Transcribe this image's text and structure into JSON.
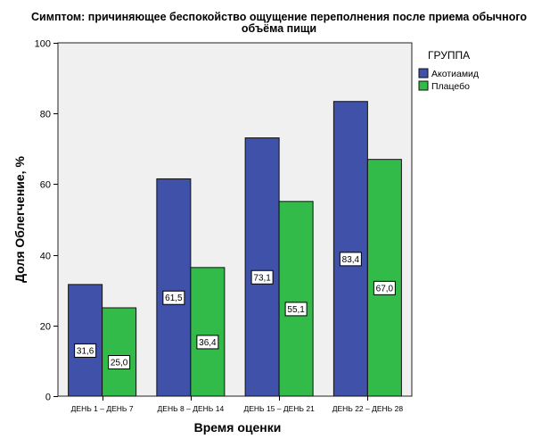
{
  "title_lines": [
    "Симптом: причиняющее беспокойство ощущение переполнения после приема обычного",
    "объёма пищи"
  ],
  "chart_data": {
    "type": "bar",
    "title": "Симптом: причиняющее беспокойство ощущение переполнения после приема обычного объёма пищи",
    "xlabel": "Время оценки",
    "ylabel": "Доля Облегчение, %",
    "categories": [
      "ДЕНЬ 1 – ДЕНЬ 7",
      "ДЕНЬ 8 – ДЕНЬ 14",
      "ДЕНЬ 15 – ДЕНЬ 21",
      "ДЕНЬ 22 – ДЕНЬ 28"
    ],
    "series": [
      {
        "name": "Акотиамид",
        "values": [
          31.6,
          61.5,
          73.1,
          83.4
        ],
        "labels": [
          "31,6",
          "61,5",
          "73,1",
          "83,4"
        ],
        "color": "#3f51a8"
      },
      {
        "name": "Плацебо",
        "values": [
          25.0,
          36.4,
          55.1,
          67.0
        ],
        "labels": [
          "25,0",
          "36,4",
          "55,1",
          "67,0"
        ],
        "color": "#33bb4a"
      }
    ],
    "ylim": [
      0,
      100
    ],
    "yticks": [
      0,
      20,
      40,
      60,
      80,
      100
    ],
    "legend_title": "ГРУППА",
    "legend_position": "top-right",
    "plot_background": "#f0f0f0",
    "grid": false
  }
}
